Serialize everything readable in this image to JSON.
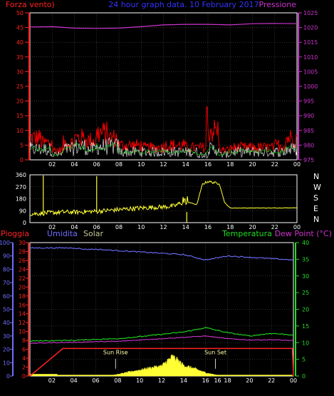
{
  "header": {
    "left_label": "Forza vento)",
    "title": "24 hour graph data. 10 February 2017",
    "right_label": "Pressione"
  },
  "panel3_labels": {
    "pioggia": "Pioggia",
    "umidita": "Umidita",
    "solar": "Solar",
    "temperatura": "Temperatura",
    "dewpoint": "Dew Point (°C)"
  },
  "compass": [
    "N",
    "W",
    "S",
    "E",
    "N"
  ],
  "annotations": {
    "sunrise": "Sun Rise",
    "sunset": "Sun Set",
    "sunset_time": "16"
  },
  "colors": {
    "background": "#000000",
    "axis": "#ffffff",
    "grid": "#555555",
    "pressure": "#cc33cc",
    "wind_gust": "#ff0000",
    "wind_avg": "#ffffff",
    "wind_extra": "#00cc00",
    "direction": "#ffff33",
    "humidity": "#6f6fff",
    "temperature": "#22dd22",
    "dewpoint": "#cc33cc",
    "rain": "#ff2222",
    "solar": "#ffff33"
  },
  "chart_data": [
    {
      "type": "line",
      "name": "wind_and_pressure",
      "x_ticks": [
        "02",
        "04",
        "06",
        "08",
        "10",
        "12",
        "14",
        "16",
        "18",
        "20",
        "22",
        "00"
      ],
      "y_left_ticks": [
        0,
        5,
        10,
        15,
        20,
        25,
        30,
        35,
        40,
        45,
        50
      ],
      "ylim_left": [
        0,
        50
      ],
      "y_right_ticks": [
        975,
        980,
        985,
        990,
        995,
        1000,
        1005,
        1010,
        1015,
        1020,
        1025
      ],
      "ylim_right": [
        975,
        1025
      ],
      "pressure_x": [
        0,
        2,
        4,
        6,
        8,
        10,
        12,
        14,
        16,
        18,
        20,
        22,
        24
      ],
      "pressure_values": [
        1020.2,
        1020.3,
        1019.8,
        1019.7,
        1019.8,
        1020.3,
        1020.9,
        1021.1,
        1021.1,
        1020.9,
        1021.3,
        1021.4,
        1021.3
      ],
      "wind_gust_hourly": [
        9,
        7,
        4,
        7,
        9,
        8,
        11,
        9,
        6,
        6,
        5,
        5,
        6,
        6,
        5,
        5,
        12,
        4,
        5,
        5,
        5,
        5,
        6,
        9
      ],
      "wind_avg_hourly": [
        4,
        4,
        2,
        4,
        5,
        4,
        5,
        5,
        3,
        3,
        3,
        3,
        3,
        3,
        3,
        2,
        4,
        2,
        3,
        3,
        3,
        3,
        3,
        4
      ],
      "wind_gust_spike": {
        "x": 15.9,
        "value": 18
      }
    },
    {
      "type": "line",
      "name": "wind_direction",
      "x_ticks": [
        "02",
        "04",
        "06",
        "08",
        "10",
        "12",
        "14",
        "16",
        "18",
        "20",
        "22",
        "00"
      ],
      "y_ticks": [
        0,
        90,
        180,
        270,
        360
      ],
      "ylim": [
        0,
        360
      ],
      "x": [
        0,
        1,
        2,
        3,
        4,
        5,
        6,
        7,
        8,
        9,
        10,
        11,
        12,
        13,
        13.6,
        14,
        15,
        15.5,
        16,
        16.9,
        17,
        17.5,
        18,
        20,
        22,
        24
      ],
      "values": [
        65,
        70,
        75,
        80,
        78,
        82,
        85,
        92,
        98,
        105,
        110,
        115,
        118,
        125,
        150,
        160,
        135,
        290,
        310,
        295,
        300,
        150,
        110,
        110,
        110,
        112
      ],
      "spikes": [
        {
          "x": 1.2,
          "value": 355
        },
        {
          "x": 6.0,
          "value": 350
        },
        {
          "x": 14.1,
          "value": 0
        }
      ]
    },
    {
      "type": "line",
      "name": "rain_humidity_solar_temp_dewpoint",
      "x_ticks": [
        "02",
        "04",
        "06",
        "08",
        "10",
        "12",
        "14",
        "16",
        "18",
        "20",
        "22",
        "00"
      ],
      "y_left_ticks_rain": [
        0,
        2,
        4,
        6,
        8,
        10,
        12,
        14,
        16,
        18,
        20,
        22,
        24,
        26,
        28,
        30
      ],
      "ylim_rain": [
        0,
        30
      ],
      "y_left_ticks_humidity": [
        0,
        10,
        20,
        30,
        40,
        50,
        60,
        70,
        80,
        90,
        100
      ],
      "ylim_humidity": [
        0,
        100
      ],
      "y_right_ticks": [
        0,
        5,
        10,
        15,
        20,
        25,
        30,
        35,
        40
      ],
      "ylim_right": [
        0,
        40
      ],
      "humidity_x": [
        0,
        2,
        4,
        5,
        6,
        8,
        10,
        12,
        14,
        15,
        16,
        18,
        20,
        22,
        24
      ],
      "humidity_values": [
        96,
        96,
        96,
        95,
        95,
        94,
        93,
        92,
        91,
        89,
        87,
        90,
        89,
        88,
        87
      ],
      "temperature_x": [
        0,
        2,
        4,
        6,
        8,
        10,
        12,
        14,
        16,
        18,
        20,
        22,
        24
      ],
      "temperature_values": [
        10.5,
        10.6,
        10.7,
        11.0,
        11.2,
        11.8,
        12.5,
        13.2,
        14.5,
        13.0,
        12.0,
        12.8,
        12.3
      ],
      "dewpoint_x": [
        0,
        2,
        4,
        6,
        8,
        10,
        12,
        14,
        16,
        18,
        20,
        22,
        24
      ],
      "dewpoint_values": [
        9.8,
        10.0,
        10.1,
        10.3,
        10.4,
        10.8,
        11.2,
        11.6,
        12.0,
        11.2,
        10.8,
        10.9,
        10.6
      ],
      "rain_x": [
        0,
        3,
        20.5,
        23.9,
        24
      ],
      "rain_values": [
        0,
        6.2,
        6.2,
        6.2,
        0
      ],
      "solar_x": [
        7,
        8,
        9,
        10,
        11,
        12,
        12.5,
        13,
        13.5,
        14,
        15,
        16,
        17,
        17.5
      ],
      "solar_values": [
        0,
        0.5,
        1.2,
        1.8,
        2.5,
        3,
        4.5,
        5.8,
        4.6,
        3.2,
        2.2,
        1.0,
        0.3,
        0
      ],
      "sunrise_x": 7.8,
      "sunset_x": 16.9
    }
  ]
}
